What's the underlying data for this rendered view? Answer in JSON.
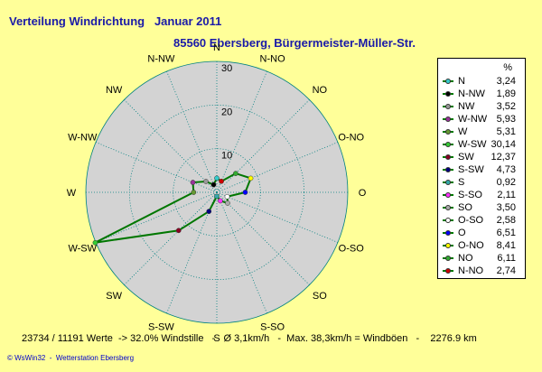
{
  "header": {
    "title": "Verteilung Windrichtung   Januar 2011",
    "subtitle": "85560 Ebersberg, Bürgermeister-Müller-Str."
  },
  "legend": {
    "unit": "%"
  },
  "footer": {
    "stats": "23734 / 11191 Werte  -> 32.0% Windstille   -   Ø 3,1km/h   -  Max. 38,3km/h = Windböen   -    2276.9 km",
    "credit": "© WsWin32  -  Wetterstation Ebersberg"
  },
  "colors": {
    "background": "#ffff99",
    "plot_fill": "#d3d3d3",
    "grid": "#008080",
    "series_line": "#007700",
    "text_blue": "#1a1aa8"
  },
  "chart_data": {
    "type": "radar",
    "title": "Verteilung Windrichtung   Januar 2011",
    "subtitle": "85560 Ebersberg, Bürgermeister-Müller-Str.",
    "radial_axis": {
      "min": 0,
      "max": 30,
      "ticks": [
        "10",
        "20",
        "30"
      ],
      "unit": "%"
    },
    "grid": true,
    "legend_position": "right",
    "directions": [
      "N",
      "N-NO",
      "NO",
      "O-NO",
      "O",
      "O-SO",
      "SO",
      "S-SO",
      "S",
      "S-SW",
      "SW",
      "W-SW",
      "W",
      "W-NW",
      "NW",
      "N-NW"
    ],
    "series": [
      {
        "name": "N",
        "value": 3.24,
        "color": "#33cccc"
      },
      {
        "name": "N-NW",
        "value": 1.89,
        "color": "#000000"
      },
      {
        "name": "NW",
        "value": 3.52,
        "color": "#999999"
      },
      {
        "name": "W-NW",
        "value": 5.93,
        "color": "#993399"
      },
      {
        "name": "W",
        "value": 5.31,
        "color": "#669933"
      },
      {
        "name": "W-SW",
        "value": 30.14,
        "color": "#33cc33"
      },
      {
        "name": "SW",
        "value": 12.37,
        "color": "#880022"
      },
      {
        "name": "S-SW",
        "value": 4.73,
        "color": "#000080"
      },
      {
        "name": "S",
        "value": 0.92,
        "color": "#33aaaa"
      },
      {
        "name": "S-SO",
        "value": 2.11,
        "color": "#ff33ff"
      },
      {
        "name": "SO",
        "value": 3.5,
        "color": "#aaaaaa"
      },
      {
        "name": "O-SO",
        "value": 2.58,
        "color": "#ffffff"
      },
      {
        "name": "O",
        "value": 6.51,
        "color": "#0000ff"
      },
      {
        "name": "O-NO",
        "value": 8.41,
        "color": "#ffff00"
      },
      {
        "name": "NO",
        "value": 6.11,
        "color": "#33aa33"
      },
      {
        "name": "N-NO",
        "value": 2.74,
        "color": "#cc0000"
      }
    ]
  }
}
